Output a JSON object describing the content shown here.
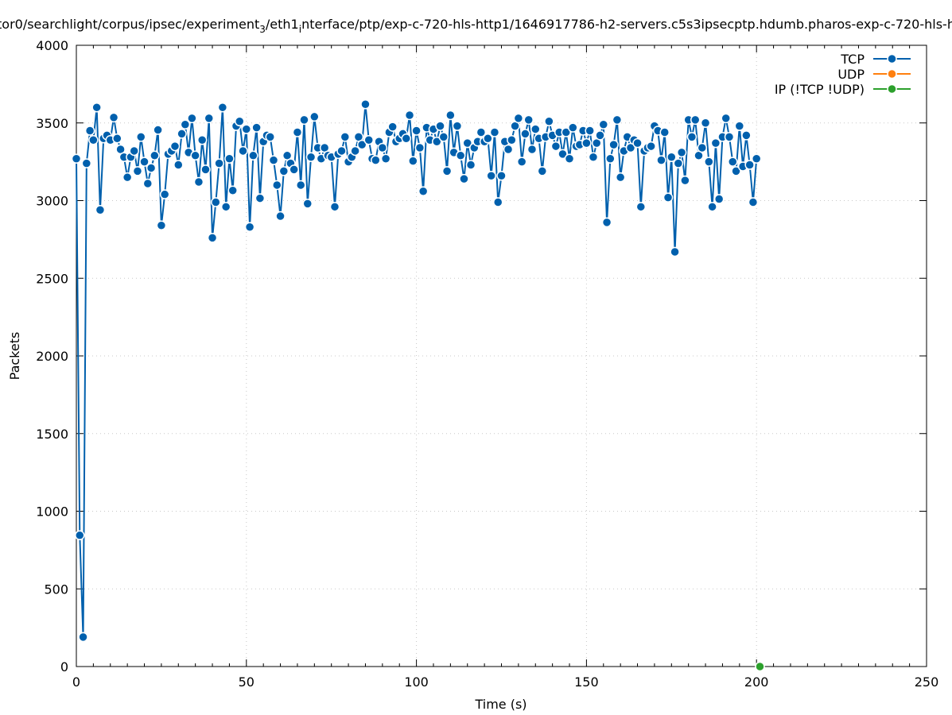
{
  "chart_data": {
    "type": "line",
    "title_pre": "tor0/searchlight/corpus/ipsec/experiment",
    "title_sub1": "3",
    "title_mid": "/eth1",
    "title_sub2": "i",
    "title_post": "nterface/ptp/exp-c-720-hls-http1/1646917786-h2-servers.c5s3ipsecptp.hdumb.pharos-exp-c-720-hls-h",
    "xlabel": "Time (s)",
    "ylabel": "Packets",
    "xlim": [
      0,
      250
    ],
    "ylim": [
      0,
      4000
    ],
    "xticks": [
      "0",
      "50",
      "100",
      "150",
      "200",
      "250"
    ],
    "yticks": [
      "0",
      "500",
      "1000",
      "1500",
      "2000",
      "2500",
      "3000",
      "3500",
      "4000"
    ],
    "grid": true,
    "legend_position": "top-right",
    "series": [
      {
        "name": "TCP",
        "color": "#0060ad",
        "x": [
          0,
          1,
          2,
          3,
          4,
          5,
          6,
          7,
          8,
          9,
          10,
          11,
          12,
          13,
          14,
          15,
          16,
          17,
          18,
          19,
          20,
          21,
          22,
          23,
          24,
          25,
          26,
          27,
          28,
          29,
          30,
          31,
          32,
          33,
          34,
          35,
          36,
          37,
          38,
          39,
          40,
          41,
          42,
          43,
          44,
          45,
          46,
          47,
          48,
          49,
          50,
          51,
          52,
          53,
          54,
          55,
          56,
          57,
          58,
          59,
          60,
          61,
          62,
          63,
          64,
          65,
          66,
          67,
          68,
          69,
          70,
          71,
          72,
          73,
          74,
          75,
          76,
          77,
          78,
          79,
          80,
          81,
          82,
          83,
          84,
          85,
          86,
          87,
          88,
          89,
          90,
          91,
          92,
          93,
          94,
          95,
          96,
          97,
          98,
          99,
          100,
          101,
          102,
          103,
          104,
          105,
          106,
          107,
          108,
          109,
          110,
          111,
          112,
          113,
          114,
          115,
          116,
          117,
          118,
          119,
          120,
          121,
          122,
          123,
          124,
          125,
          126,
          127,
          128,
          129,
          130,
          131,
          132,
          133,
          134,
          135,
          136,
          137,
          138,
          139,
          140,
          141,
          142,
          143,
          144,
          145,
          146,
          147,
          148,
          149,
          150,
          151,
          152,
          153,
          154,
          155,
          156,
          157,
          158,
          159,
          160,
          161,
          162,
          163,
          164,
          165,
          166,
          167,
          168,
          169,
          170,
          171,
          172,
          173,
          174,
          175,
          176,
          177,
          178,
          179,
          180,
          181,
          182,
          183,
          184,
          185,
          186,
          187,
          188,
          189,
          190,
          191,
          192,
          193,
          194,
          195,
          196,
          197,
          198,
          199,
          200
        ],
        "y": [
          3270,
          845,
          190,
          3240,
          3450,
          3390,
          3600,
          2940,
          3400,
          3420,
          3390,
          3535,
          3400,
          3330,
          3280,
          3150,
          3280,
          3320,
          3190,
          3410,
          3250,
          3110,
          3210,
          3290,
          3455,
          2840,
          3040,
          3300,
          3320,
          3350,
          3230,
          3430,
          3490,
          3310,
          3530,
          3290,
          3120,
          3390,
          3200,
          3530,
          2760,
          2990,
          3240,
          3600,
          2960,
          3270,
          3065,
          3480,
          3510,
          3320,
          3460,
          2830,
          3290,
          3470,
          3015,
          3380,
          3420,
          3410,
          3260,
          3100,
          2900,
          3190,
          3290,
          3240,
          3200,
          3440,
          3100,
          3520,
          2980,
          3280,
          3540,
          3340,
          3270,
          3340,
          3290,
          3280,
          2960,
          3300,
          3320,
          3410,
          3250,
          3280,
          3320,
          3410,
          3360,
          3620,
          3390,
          3270,
          3260,
          3380,
          3340,
          3270,
          3440,
          3475,
          3380,
          3400,
          3430,
          3400,
          3550,
          3255,
          3450,
          3340,
          3060,
          3470,
          3390,
          3460,
          3380,
          3480,
          3410,
          3190,
          3550,
          3310,
          3480,
          3290,
          3140,
          3370,
          3230,
          3340,
          3380,
          3440,
          3380,
          3400,
          3160,
          3440,
          2990,
          3160,
          3380,
          3330,
          3390,
          3480,
          3530,
          3250,
          3430,
          3520,
          3330,
          3460,
          3400,
          3190,
          3410,
          3510,
          3420,
          3350,
          3440,
          3300,
          3440,
          3270,
          3470,
          3350,
          3360,
          3450,
          3370,
          3450,
          3280,
          3370,
          3420,
          3490,
          2860,
          3270,
          3360,
          3520,
          3150,
          3320,
          3410,
          3340,
          3390,
          3370,
          2960,
          3320,
          3340,
          3350,
          3480,
          3450,
          3260,
          3440,
          3020,
          3280,
          2670,
          3240,
          3310,
          3130,
          3520,
          3410,
          3520,
          3290,
          3340,
          3500,
          3250,
          2960,
          3370,
          3010,
          3410,
          3530,
          3410,
          3250,
          3190,
          3480,
          3220,
          3420,
          3230,
          2990,
          3270
        ]
      },
      {
        "name": "UDP",
        "color": "#ff7f0e",
        "x": [],
        "y": []
      },
      {
        "name": "IP (!TCP  !UDP)",
        "color": "#2ca02c",
        "x": [
          201
        ],
        "y": [
          0
        ]
      }
    ]
  }
}
